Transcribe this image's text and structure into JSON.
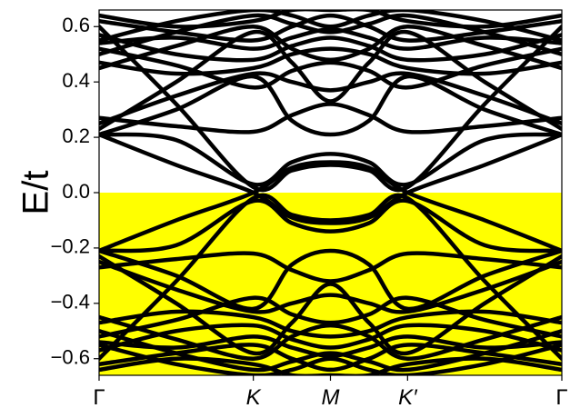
{
  "chart_data": {
    "type": "line",
    "title": "",
    "xlabel": "",
    "ylabel": "E/t",
    "ylim": [
      -0.66,
      0.66
    ],
    "grid": false,
    "legend": "none",
    "x_ticks": [
      {
        "label": "Γ",
        "x": 0
      },
      {
        "label": "K",
        "x": 1
      },
      {
        "label": "M",
        "x": 1.5
      },
      {
        "label": "K′",
        "x": 2
      },
      {
        "label": "Γ",
        "x": 3
      }
    ],
    "y_ticks": [
      -0.6,
      -0.4,
      -0.2,
      0.0,
      0.2,
      0.4,
      0.6
    ],
    "filled_region": {
      "from": -0.66,
      "to": 0.0,
      "color": "#ffff00"
    },
    "band_color": "#000000",
    "x_path": [
      0,
      0.5,
      1,
      1.25,
      1.5,
      1.75,
      2,
      2.5,
      3
    ],
    "series": [
      {
        "values": [
          -0.6,
          -0.32,
          -0.02,
          -0.08,
          -0.1,
          -0.08,
          -0.02,
          -0.32,
          -0.6
        ]
      },
      {
        "values": [
          0.6,
          0.32,
          0.02,
          0.08,
          0.1,
          0.08,
          0.02,
          0.32,
          0.6
        ]
      },
      {
        "values": [
          -0.21,
          -0.1,
          0.0,
          0.09,
          0.11,
          0.09,
          0.0,
          -0.1,
          -0.21
        ]
      },
      {
        "values": [
          0.21,
          0.1,
          0.0,
          -0.09,
          -0.11,
          -0.09,
          0.0,
          0.1,
          0.21
        ]
      },
      {
        "values": [
          -0.21,
          -0.3,
          -0.42,
          -0.26,
          -0.21,
          -0.26,
          -0.42,
          -0.3,
          -0.21
        ]
      },
      {
        "values": [
          0.21,
          0.3,
          0.42,
          0.26,
          0.21,
          0.26,
          0.42,
          0.3,
          0.21
        ]
      },
      {
        "values": [
          0.21,
          0.19,
          0.03,
          0.11,
          0.14,
          0.11,
          0.03,
          0.19,
          0.21
        ]
      },
      {
        "values": [
          -0.21,
          -0.19,
          -0.03,
          -0.11,
          -0.14,
          -0.11,
          -0.03,
          -0.19,
          -0.21
        ]
      },
      {
        "values": [
          -0.23,
          -0.4,
          -0.58,
          -0.47,
          -0.33,
          -0.47,
          -0.58,
          -0.4,
          -0.23
        ]
      },
      {
        "values": [
          0.23,
          0.4,
          0.58,
          0.47,
          0.33,
          0.47,
          0.58,
          0.4,
          0.23
        ]
      },
      {
        "values": [
          0.25,
          0.35,
          0.43,
          0.4,
          0.37,
          0.4,
          0.43,
          0.35,
          0.25
        ]
      },
      {
        "values": [
          -0.25,
          -0.35,
          -0.43,
          -0.4,
          -0.37,
          -0.4,
          -0.43,
          -0.35,
          -0.25
        ]
      },
      {
        "values": [
          0.27,
          0.24,
          0.22,
          0.28,
          0.32,
          0.28,
          0.22,
          0.24,
          0.27
        ]
      },
      {
        "values": [
          -0.27,
          -0.24,
          -0.22,
          -0.28,
          -0.32,
          -0.28,
          -0.22,
          -0.24,
          -0.27
        ]
      },
      {
        "values": [
          -0.45,
          -0.53,
          -0.6,
          -0.52,
          -0.48,
          -0.52,
          -0.6,
          -0.53,
          -0.45
        ]
      },
      {
        "values": [
          0.45,
          0.53,
          0.6,
          0.52,
          0.48,
          0.52,
          0.6,
          0.53,
          0.45
        ]
      },
      {
        "values": [
          -0.47,
          -0.43,
          -0.45,
          -0.5,
          -0.52,
          -0.5,
          -0.45,
          -0.43,
          -0.47
        ]
      },
      {
        "values": [
          0.47,
          0.43,
          0.45,
          0.5,
          0.52,
          0.5,
          0.45,
          0.43,
          0.47
        ]
      },
      {
        "values": [
          -0.5,
          -0.58,
          -0.64,
          -0.61,
          -0.58,
          -0.61,
          -0.64,
          -0.58,
          -0.5
        ]
      },
      {
        "values": [
          0.5,
          0.58,
          0.64,
          0.61,
          0.58,
          0.61,
          0.64,
          0.58,
          0.5
        ]
      },
      {
        "values": [
          0.52,
          0.46,
          0.38,
          0.44,
          0.47,
          0.44,
          0.38,
          0.46,
          0.52
        ]
      },
      {
        "values": [
          -0.52,
          -0.46,
          -0.38,
          -0.44,
          -0.47,
          -0.44,
          -0.38,
          -0.46,
          -0.52
        ]
      },
      {
        "values": [
          0.54,
          0.56,
          0.52,
          0.56,
          0.59,
          0.56,
          0.52,
          0.56,
          0.54
        ]
      },
      {
        "values": [
          -0.54,
          -0.56,
          -0.52,
          -0.56,
          -0.59,
          -0.56,
          -0.52,
          -0.56,
          -0.54
        ]
      },
      {
        "values": [
          0.55,
          0.62,
          0.66,
          0.64,
          0.6,
          0.64,
          0.66,
          0.62,
          0.55
        ]
      },
      {
        "values": [
          -0.55,
          -0.62,
          -0.66,
          -0.64,
          -0.6,
          -0.64,
          -0.66,
          -0.62,
          -0.55
        ]
      },
      {
        "values": [
          0.57,
          0.5,
          0.48,
          0.53,
          0.56,
          0.53,
          0.48,
          0.5,
          0.57
        ]
      },
      {
        "values": [
          -0.57,
          -0.5,
          -0.48,
          -0.53,
          -0.56,
          -0.53,
          -0.48,
          -0.5,
          -0.57
        ]
      },
      {
        "values": [
          0.62,
          0.58,
          0.55,
          0.6,
          0.64,
          0.6,
          0.55,
          0.58,
          0.62
        ]
      },
      {
        "values": [
          -0.62,
          -0.58,
          -0.55,
          -0.6,
          -0.64,
          -0.6,
          -0.55,
          -0.58,
          -0.62
        ]
      },
      {
        "values": [
          0.64,
          0.6,
          0.62,
          0.66,
          0.66,
          0.66,
          0.62,
          0.6,
          0.64
        ]
      },
      {
        "values": [
          -0.64,
          -0.6,
          -0.62,
          -0.66,
          -0.66,
          -0.66,
          -0.62,
          -0.6,
          -0.64
        ]
      }
    ]
  }
}
